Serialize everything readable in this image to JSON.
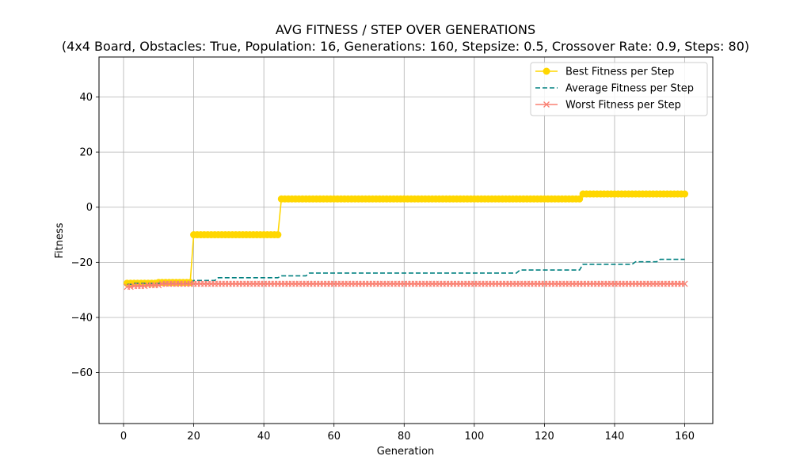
{
  "chart_data": {
    "type": "line",
    "title": "AVG FITNESS / STEP OVER GENERATIONS",
    "subtitle": "(4x4 Board, Obstacles: True, Population: 16, Generations: 160, Stepsize: 0.5, Crossover Rate: 0.9, Steps: 80)",
    "xlabel": "Generation",
    "ylabel": "Fitness",
    "xlim": [
      -7,
      168
    ],
    "ylim": [
      -78.5,
      54.5
    ],
    "xticks": [
      0,
      20,
      40,
      60,
      80,
      100,
      120,
      140,
      160
    ],
    "yticks": [
      -60,
      -40,
      -20,
      0,
      20,
      40
    ],
    "ytick_labels": [
      "−60",
      "−40",
      "−20",
      "0",
      "20",
      "40"
    ],
    "grid": true,
    "legend_position": "top-right",
    "series": [
      {
        "name": "Best Fitness per Step",
        "color": "#ffd700",
        "style": "solid",
        "marker": "circle",
        "segments": [
          {
            "from": 1,
            "to": 9,
            "value": -27.6
          },
          {
            "from": 10,
            "to": 19,
            "value": -27.3
          },
          {
            "from": 20,
            "to": 44,
            "value": -10.0
          },
          {
            "from": 45,
            "to": 130,
            "value": 3.0
          },
          {
            "from": 131,
            "to": 160,
            "value": 4.8
          }
        ]
      },
      {
        "name": "Average Fitness per Step",
        "color": "#008080",
        "style": "dashed",
        "marker": "none",
        "segments": [
          {
            "from": 1,
            "to": 2,
            "value": -28.0
          },
          {
            "from": 3,
            "to": 19,
            "value": -27.6
          },
          {
            "from": 20,
            "to": 26,
            "value": -26.6
          },
          {
            "from": 27,
            "to": 44,
            "value": -25.6
          },
          {
            "from": 45,
            "to": 52,
            "value": -24.9
          },
          {
            "from": 53,
            "to": 112,
            "value": -23.9
          },
          {
            "from": 113,
            "to": 130,
            "value": -22.8
          },
          {
            "from": 131,
            "to": 145,
            "value": -20.7
          },
          {
            "from": 146,
            "to": 152,
            "value": -19.8
          },
          {
            "from": 153,
            "to": 160,
            "value": -18.9
          }
        ]
      },
      {
        "name": "Worst Fitness per Step",
        "color": "#fa8072",
        "style": "solid",
        "marker": "x",
        "segments": [
          {
            "from": 1,
            "to": 2,
            "value": -28.9
          },
          {
            "from": 3,
            "to": 6,
            "value": -28.6
          },
          {
            "from": 7,
            "to": 10,
            "value": -28.3
          },
          {
            "from": 11,
            "to": 160,
            "value": -27.8
          }
        ]
      }
    ]
  }
}
